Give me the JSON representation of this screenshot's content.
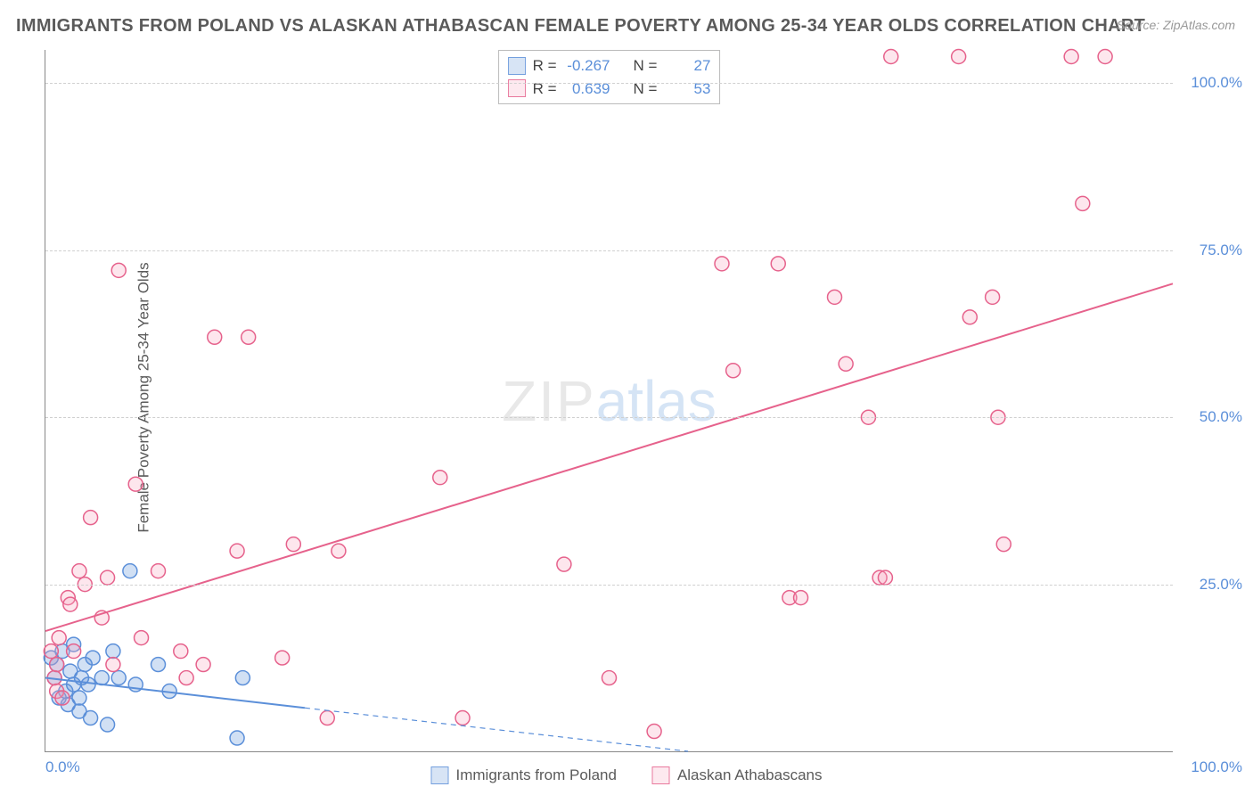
{
  "chart": {
    "type": "scatter",
    "title": "IMMIGRANTS FROM POLAND VS ALASKAN ATHABASCAN FEMALE POVERTY AMONG 25-34 YEAR OLDS CORRELATION CHART",
    "source": "Source: ZipAtlas.com",
    "y_axis_label": "Female Poverty Among 25-34 Year Olds",
    "watermark": {
      "part1": "ZIP",
      "part2": "atlas"
    },
    "background_color": "#ffffff",
    "grid_color": "#d0d0d0",
    "axis_color": "#888888",
    "title_color": "#5a5a5a",
    "title_fontsize": 20,
    "tick_label_color": "#5b8fd9",
    "tick_fontsize": 17,
    "xlim": [
      0,
      100
    ],
    "ylim": [
      0,
      105
    ],
    "y_ticks": [
      25,
      50,
      75,
      100
    ],
    "y_tick_labels": [
      "25.0%",
      "50.0%",
      "75.0%",
      "100.0%"
    ],
    "x_tick_left": "0.0%",
    "x_tick_right": "100.0%",
    "marker_radius": 8,
    "marker_stroke_width": 1.5,
    "marker_fill_opacity": 0.28,
    "line_width": 2,
    "series": [
      {
        "id": "poland",
        "label": "Immigrants from Poland",
        "color": "#5b8fd9",
        "fill": "#5b8fd9",
        "R": "-0.267",
        "N": "27",
        "trend_solid": {
          "x1": 0,
          "y1": 11,
          "x2": 23,
          "y2": 6.5
        },
        "trend_dashed": {
          "x1": 23,
          "y1": 6.5,
          "x2": 57,
          "y2": 0
        },
        "points": [
          [
            0.5,
            14
          ],
          [
            0.8,
            11
          ],
          [
            1,
            13
          ],
          [
            1.2,
            8
          ],
          [
            1.5,
            15
          ],
          [
            1.8,
            9
          ],
          [
            2,
            7
          ],
          [
            2.2,
            12
          ],
          [
            2.5,
            10
          ],
          [
            2.5,
            16
          ],
          [
            3,
            8
          ],
          [
            3,
            6
          ],
          [
            3.2,
            11
          ],
          [
            3.5,
            13
          ],
          [
            3.8,
            10
          ],
          [
            4,
            5
          ],
          [
            4.2,
            14
          ],
          [
            5,
            11
          ],
          [
            5.5,
            4
          ],
          [
            6,
            15
          ],
          [
            6.5,
            11
          ],
          [
            7.5,
            27
          ],
          [
            8,
            10
          ],
          [
            10,
            13
          ],
          [
            11,
            9
          ],
          [
            17,
            2
          ],
          [
            17.5,
            11
          ]
        ]
      },
      {
        "id": "athabascan",
        "label": "Alaskan Athabascans",
        "color": "#e6628c",
        "fill": "#f7a7bd",
        "R": "0.639",
        "N": "53",
        "trend_solid": {
          "x1": 0,
          "y1": 18,
          "x2": 100,
          "y2": 70
        },
        "trend_dashed": null,
        "points": [
          [
            0.5,
            15
          ],
          [
            0.8,
            11
          ],
          [
            1,
            13
          ],
          [
            1,
            9
          ],
          [
            1.2,
            17
          ],
          [
            1.5,
            8
          ],
          [
            2,
            23
          ],
          [
            2.2,
            22
          ],
          [
            2.5,
            15
          ],
          [
            3,
            27
          ],
          [
            3.5,
            25
          ],
          [
            4,
            35
          ],
          [
            5,
            20
          ],
          [
            5.5,
            26
          ],
          [
            6,
            13
          ],
          [
            6.5,
            72
          ],
          [
            8,
            40
          ],
          [
            8.5,
            17
          ],
          [
            10,
            27
          ],
          [
            12,
            15
          ],
          [
            12.5,
            11
          ],
          [
            14,
            13
          ],
          [
            15,
            62
          ],
          [
            17,
            30
          ],
          [
            18,
            62
          ],
          [
            21,
            14
          ],
          [
            22,
            31
          ],
          [
            25,
            5
          ],
          [
            26,
            30
          ],
          [
            35,
            41
          ],
          [
            37,
            5
          ],
          [
            46,
            28
          ],
          [
            50,
            11
          ],
          [
            54,
            3
          ],
          [
            60,
            73
          ],
          [
            61,
            57
          ],
          [
            65,
            73
          ],
          [
            66,
            23
          ],
          [
            67,
            23
          ],
          [
            70,
            68
          ],
          [
            71,
            58
          ],
          [
            73,
            50
          ],
          [
            74,
            26
          ],
          [
            74.5,
            26
          ],
          [
            75,
            104
          ],
          [
            81,
            104
          ],
          [
            82,
            65
          ],
          [
            84,
            68
          ],
          [
            84.5,
            50
          ],
          [
            85,
            31
          ],
          [
            91,
            104
          ],
          [
            92,
            82
          ],
          [
            94,
            104
          ]
        ]
      }
    ],
    "stats_legend": {
      "R_label": "R =",
      "N_label": "N ="
    },
    "bottom_legend_labels": [
      "Immigrants from Poland",
      "Alaskan Athabascans"
    ]
  }
}
